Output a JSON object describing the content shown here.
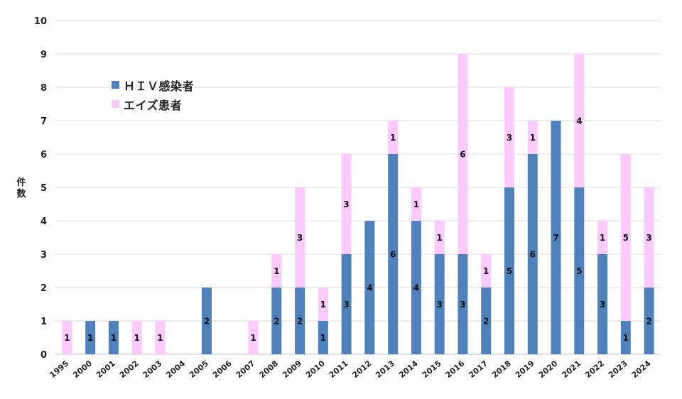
{
  "chart_data": {
    "type": "bar",
    "stacked": true,
    "ylabel": "件数",
    "ylim": [
      0,
      10
    ],
    "yticks": [
      "0",
      "1",
      "2",
      "3",
      "4",
      "5",
      "6",
      "7",
      "8",
      "9",
      "10"
    ],
    "grid": true,
    "legend_placement": "top-left",
    "categories": [
      "1995",
      "2000",
      "2001",
      "2002",
      "2003",
      "2004",
      "2005",
      "2006",
      "2007",
      "2008",
      "2009",
      "2010",
      "2011",
      "2012",
      "2013",
      "2014",
      "2015",
      "2016",
      "2017",
      "2018",
      "2019",
      "2020",
      "2021",
      "2022",
      "2023",
      "2024"
    ],
    "series": [
      {
        "name": "ＨＩＶ感染者",
        "color": "#4f81bd",
        "values": [
          0,
          1,
          1,
          0,
          0,
          0,
          2,
          0,
          0,
          2,
          2,
          1,
          3,
          4,
          6,
          4,
          3,
          3,
          2,
          5,
          6,
          7,
          5,
          3,
          1,
          2
        ]
      },
      {
        "name": "エイズ患者",
        "color": "#fccafc",
        "values": [
          1,
          0,
          0,
          1,
          1,
          0,
          0,
          0,
          1,
          1,
          3,
          1,
          3,
          0,
          1,
          1,
          1,
          6,
          1,
          3,
          1,
          0,
          4,
          1,
          5,
          3
        ]
      }
    ]
  }
}
